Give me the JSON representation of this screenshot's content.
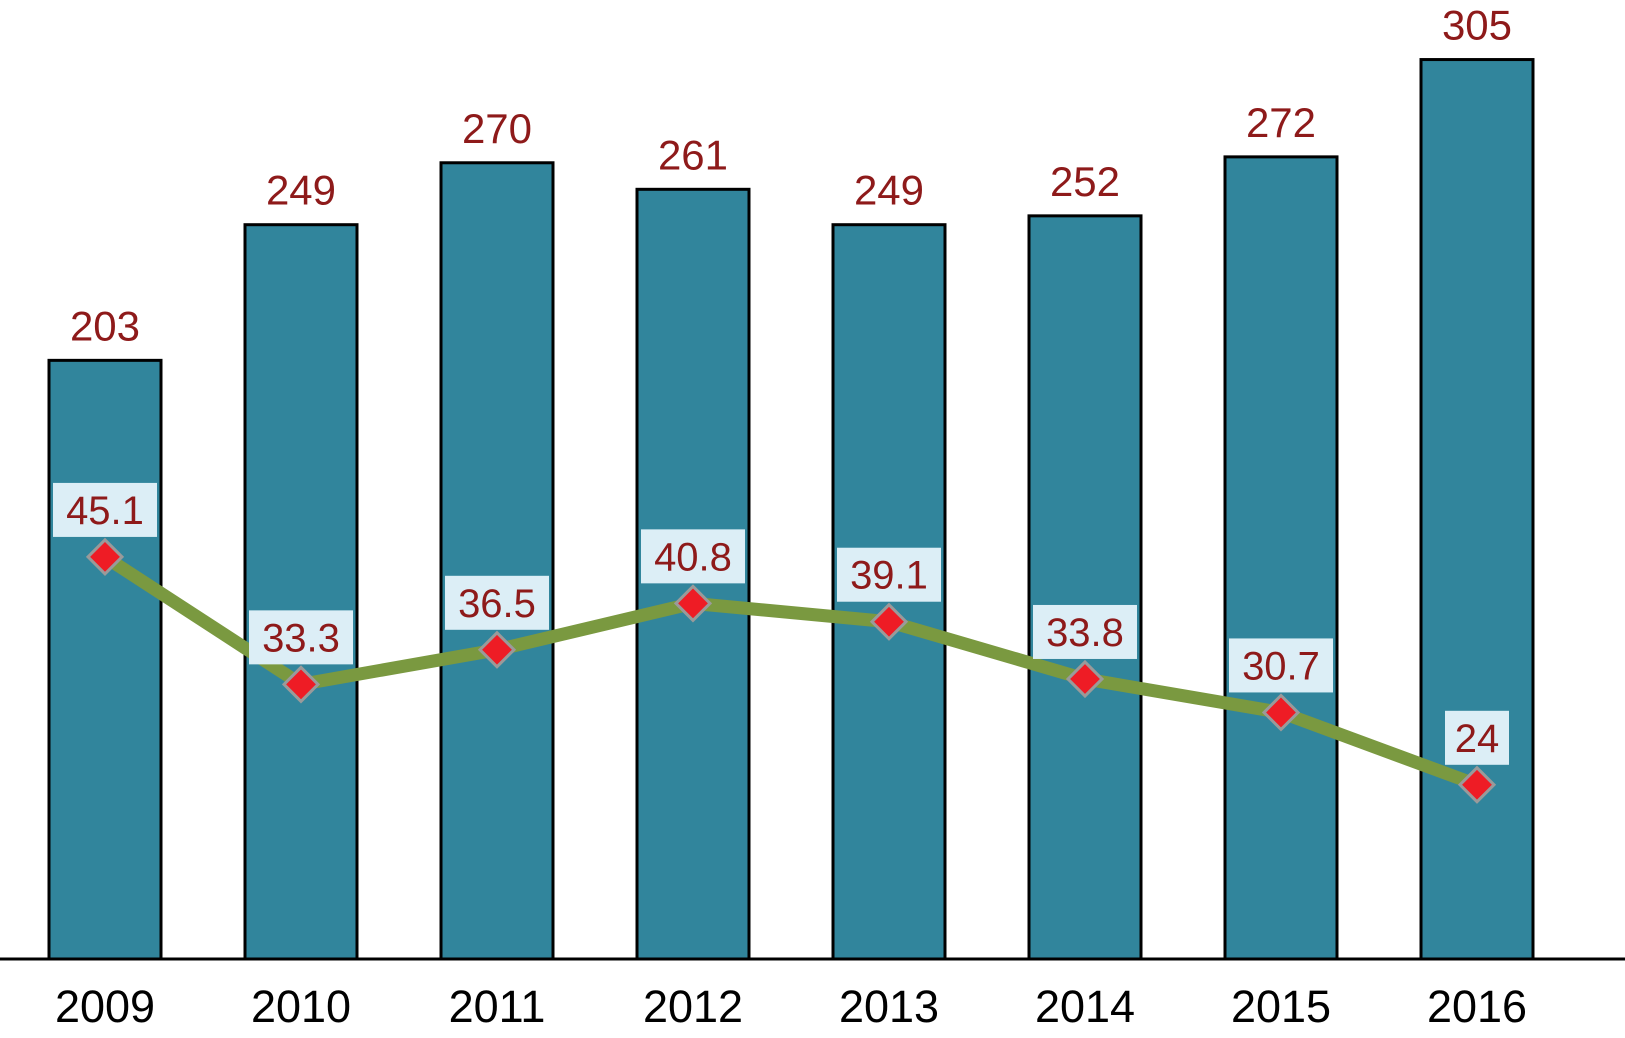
{
  "chart_data": {
    "type": "combo",
    "categories": [
      "2009",
      "2010",
      "2011",
      "2012",
      "2013",
      "2014",
      "2015",
      "2016"
    ],
    "series": [
      {
        "name": "bar-series",
        "type": "bar",
        "values": [
          203,
          249,
          270,
          261,
          249,
          252,
          272,
          305
        ],
        "data_labels": [
          "203",
          "249",
          "270",
          "261",
          "249",
          "252",
          "272",
          "305"
        ],
        "color": "#31859C",
        "border_color": "#000000",
        "label_color": "#8E1A1A"
      },
      {
        "name": "line-series",
        "type": "line",
        "values": [
          45.1,
          33.3,
          36.5,
          40.8,
          39.1,
          33.8,
          30.7,
          24
        ],
        "data_labels": [
          "45.1",
          "33.3",
          "36.5",
          "40.8",
          "39.1",
          "33.8",
          "30.7",
          "24"
        ],
        "color": "#7A9940",
        "marker": {
          "shape": "diamond",
          "fill": "#EE1C25",
          "stroke": "#9A9A9A"
        },
        "label_color": "#8E1A1A",
        "label_bg": "#DCEEF6"
      }
    ],
    "bar_ylim": [
      0,
      325
    ],
    "grid": false,
    "legend": "none",
    "axis_line_color": "#000000",
    "tick_label_color": "#000000",
    "background": "#FFFFFF"
  }
}
